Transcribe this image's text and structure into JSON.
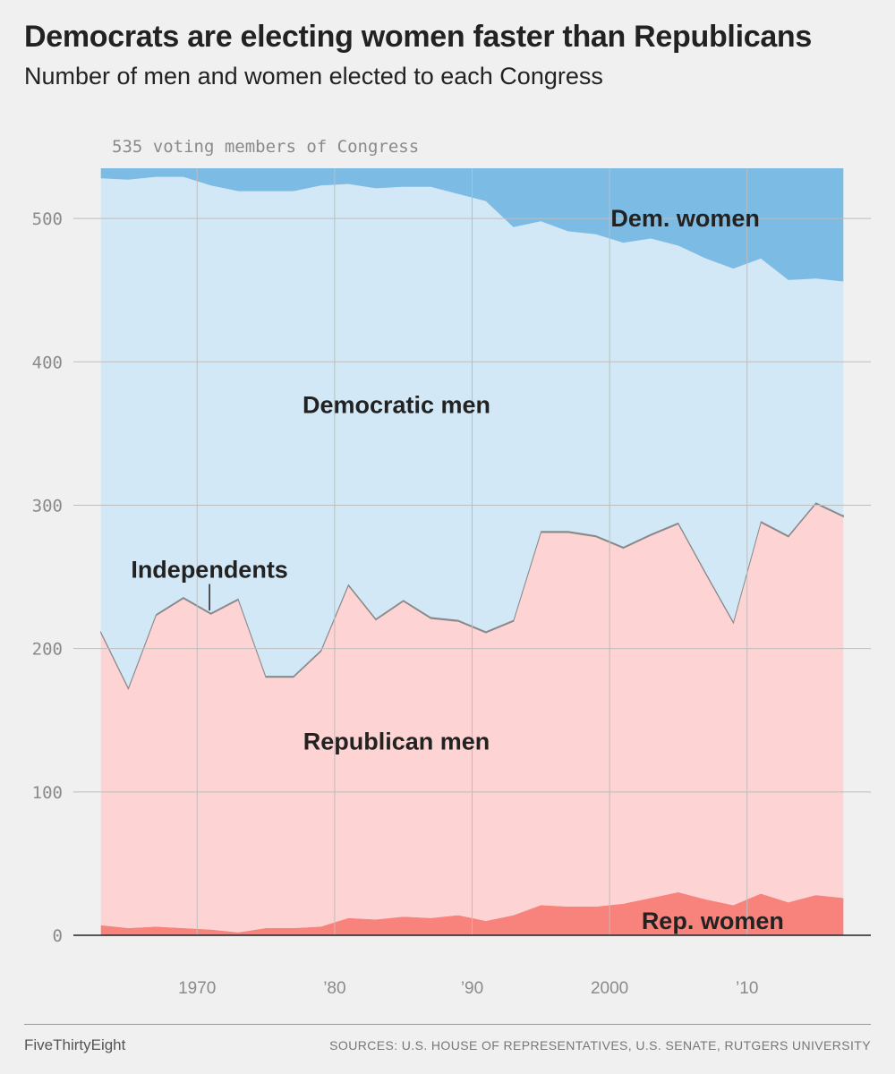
{
  "header": {
    "title": "Democrats are electing women faster than Republicans",
    "subtitle": "Number of men and women elected to each Congress"
  },
  "footer": {
    "brand": "FiveThirtyEight",
    "sources": "SOURCES: U.S. HOUSE OF REPRESENTATIVES, U.S. SENATE, RUTGERS UNIVERSITY"
  },
  "colors": {
    "dem_women": "#7bbbe4",
    "dem_men": "#d3e8f6",
    "rep_men": "#fdd3d3",
    "rep_women": "#f7837c",
    "independents": "#8a8a8a",
    "grid": "#bdbdbd",
    "axis_text": "#8a8a8a"
  },
  "chart_data": {
    "type": "area",
    "stacked": true,
    "title": "Democrats are electing women faster than Republicans",
    "subtitle": "Number of men and women elected to each Congress",
    "total_annotation": "535 voting members of Congress",
    "xlabel": "",
    "ylabel": "",
    "xlim": [
      1961,
      2019
    ],
    "ylim": [
      0,
      535
    ],
    "x": [
      1963,
      1965,
      1967,
      1969,
      1971,
      1973,
      1975,
      1977,
      1979,
      1981,
      1983,
      1985,
      1987,
      1989,
      1991,
      1993,
      1995,
      1997,
      1999,
      2001,
      2003,
      2005,
      2007,
      2009,
      2011,
      2013,
      2015,
      2017
    ],
    "x_ticks": [
      1970,
      1980,
      1990,
      2000,
      2010
    ],
    "x_tick_labels": [
      "1970",
      "’80",
      "’90",
      "2000",
      "’10"
    ],
    "y_ticks": [
      0,
      100,
      200,
      300,
      400,
      500
    ],
    "y_tick_labels": [
      "0",
      "100",
      "200",
      "300",
      "400",
      "500"
    ],
    "grid": true,
    "series": [
      {
        "name": "Rep. women",
        "label": "Rep. women",
        "values": [
          7,
          5,
          6,
          5,
          4,
          2,
          5,
          5,
          6,
          12,
          11,
          13,
          12,
          14,
          10,
          14,
          21,
          20,
          20,
          22,
          26,
          30,
          25,
          21,
          29,
          23,
          28,
          26
        ]
      },
      {
        "name": "Republican men",
        "label": "Republican men",
        "values": [
          204,
          167,
          217,
          230,
          220,
          232,
          175,
          175,
          192,
          232,
          209,
          220,
          209,
          205,
          201,
          205,
          260,
          261,
          258,
          248,
          253,
          257,
          227,
          197,
          259,
          255,
          273,
          266
        ]
      },
      {
        "name": "Independents",
        "label": "Independents",
        "values": [
          1,
          1,
          1,
          1,
          1,
          1,
          1,
          1,
          1,
          1,
          1,
          1,
          1,
          1,
          1,
          1,
          1,
          1,
          1,
          1,
          1,
          1,
          1,
          1,
          1,
          1,
          1,
          1
        ]
      },
      {
        "name": "Democratic men",
        "label": "Democratic men",
        "values": [
          316,
          354,
          305,
          293,
          298,
          284,
          338,
          338,
          324,
          279,
          300,
          288,
          300,
          297,
          300,
          274,
          216,
          209,
          210,
          212,
          206,
          193,
          219,
          246,
          183,
          178,
          156,
          163
        ]
      },
      {
        "name": "Dem. women",
        "label": "Dem. women",
        "values": [
          7,
          8,
          6,
          6,
          12,
          16,
          16,
          16,
          12,
          11,
          14,
          13,
          13,
          18,
          23,
          41,
          37,
          44,
          46,
          52,
          49,
          54,
          63,
          70,
          63,
          78,
          77,
          79
        ]
      }
    ],
    "series_labels": [
      {
        "series": "Dem. women",
        "text": "Dem. women",
        "x": 2005.5,
        "y": 500
      },
      {
        "series": "Democratic men",
        "text": "Democratic men",
        "x": 1984.5,
        "y": 370
      },
      {
        "series": "Independents",
        "text": "Independents",
        "x": 1970.9,
        "y": 255
      },
      {
        "series": "Republican men",
        "text": "Republican men",
        "x": 1984.5,
        "y": 135
      },
      {
        "series": "Rep. women",
        "text": "Rep. women",
        "x": 2007.5,
        "y": 10
      }
    ]
  }
}
